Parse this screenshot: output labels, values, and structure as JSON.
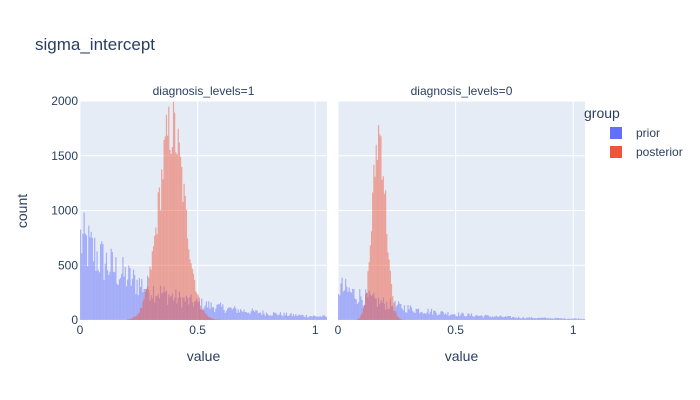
{
  "chart_data": {
    "type": "bar",
    "title": "sigma_intercept",
    "xlabel": "value",
    "ylabel": "count",
    "legend": {
      "title": "group",
      "placement": "right",
      "entries": [
        {
          "name": "prior",
          "color": "#636efa"
        },
        {
          "name": "posterior",
          "color": "#ef553b"
        }
      ]
    },
    "barmode": "overlay",
    "bar_opacity": 0.5,
    "grid": true,
    "shared_yaxis": true,
    "ylim": [
      0,
      2000
    ],
    "y_ticks": [
      0,
      500,
      1000,
      1500,
      2000
    ],
    "y_tick_labels": [
      "0",
      "500",
      "1000",
      "1500",
      "2000"
    ],
    "bin_width": 0.005,
    "panels": [
      {
        "facet_label": "diagnosis_levels=1",
        "xlim": [
          0,
          1.05
        ],
        "x_ticks": [
          0,
          0.5,
          1
        ],
        "x_tick_labels": [
          "0",
          "0.5",
          "1"
        ],
        "series": [
          {
            "name": "prior",
            "color": "#636efa",
            "shape": {
              "type": "decay",
              "start": 800,
              "end": 5,
              "rate": 3.2,
              "domain": [
                0,
                1.05
              ]
            }
          },
          {
            "name": "posterior",
            "color": "#ef553b",
            "shape": {
              "type": "gaussian",
              "peak": 1800,
              "mean": 0.39,
              "sd": 0.055,
              "domain": [
                0.2,
                0.62
              ]
            }
          }
        ]
      },
      {
        "facet_label": "diagnosis_levels=0",
        "xlim": [
          0,
          1.05
        ],
        "x_ticks": [
          0,
          0.5,
          1
        ],
        "x_tick_labels": [
          "0",
          "0.5",
          "1"
        ],
        "series": [
          {
            "name": "prior",
            "color": "#636efa",
            "shape": {
              "type": "decay",
              "start": 330,
              "end": 5,
              "rate": 3.6,
              "domain": [
                0,
                1.05
              ]
            }
          },
          {
            "name": "posterior",
            "color": "#ef553b",
            "shape": {
              "type": "gaussian",
              "peak": 1750,
              "mean": 0.175,
              "sd": 0.028,
              "domain": [
                0.08,
                0.3
              ]
            }
          }
        ]
      }
    ]
  }
}
